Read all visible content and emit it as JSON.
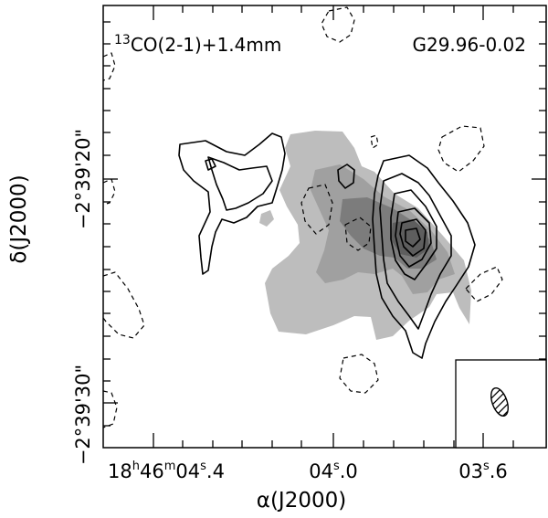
{
  "panel": {
    "line_label": "CO(2-1)+1.4mm",
    "line_isotope": "13",
    "source_name": "G29.96-0.02"
  },
  "axes": {
    "x_label": "α(J2000)",
    "y_label": "δ(J2000)",
    "x_ticks": [
      {
        "h": "18",
        "m": "46",
        "s": "04",
        "frac": ".4"
      },
      {
        "s": "04",
        "frac": ".0"
      },
      {
        "s": "03",
        "frac": ".6"
      }
    ],
    "y_ticks": [
      {
        "label": "−2°39'20\""
      },
      {
        "label": "−2°39'30\""
      }
    ]
  },
  "colors": {
    "grey_light": "#bdbdbd",
    "grey_mid": "#a0a0a0",
    "grey_dark": "#7c7c7c",
    "grey_darker": "#5e5e5e",
    "contour": "#000000"
  }
}
